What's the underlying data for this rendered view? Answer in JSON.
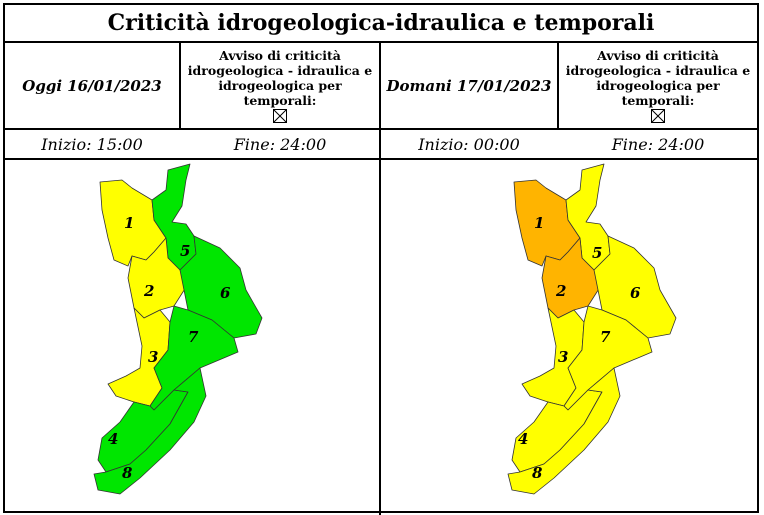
{
  "title": "Criticità idrogeologica-idraulica e temporali",
  "today": {
    "date_label": "Oggi 16/01/2023",
    "avviso_lines": [
      "Avviso di criticità",
      "idrogeologica - idraulica e",
      "idrogeologica per temporali:"
    ],
    "start_label": "Inizio: 15:00",
    "end_label": "Fine: 24:00",
    "zones": [
      {
        "id": "1",
        "color": "#ffff00"
      },
      {
        "id": "2",
        "color": "#ffff00"
      },
      {
        "id": "3",
        "color": "#ffff00"
      },
      {
        "id": "4",
        "color": "#00e600"
      },
      {
        "id": "5",
        "color": "#00e600"
      },
      {
        "id": "6",
        "color": "#00e600"
      },
      {
        "id": "7",
        "color": "#00e600"
      },
      {
        "id": "8",
        "color": "#00e600"
      }
    ]
  },
  "tomorrow": {
    "date_label": "Domani 17/01/2023",
    "avviso_lines": [
      "Avviso di criticità",
      "idrogeologica - idraulica e",
      "idrogeologica per temporali:"
    ],
    "start_label": "Inizio: 00:00",
    "end_label": "Fine: 24:00",
    "zones": [
      {
        "id": "1",
        "color": "#ffb400"
      },
      {
        "id": "2",
        "color": "#ffb400"
      },
      {
        "id": "3",
        "color": "#ffff00"
      },
      {
        "id": "4",
        "color": "#ffff00"
      },
      {
        "id": "5",
        "color": "#ffff00"
      },
      {
        "id": "6",
        "color": "#ffff00"
      },
      {
        "id": "7",
        "color": "#ffff00"
      },
      {
        "id": "8",
        "color": "#ffff00"
      }
    ]
  }
}
